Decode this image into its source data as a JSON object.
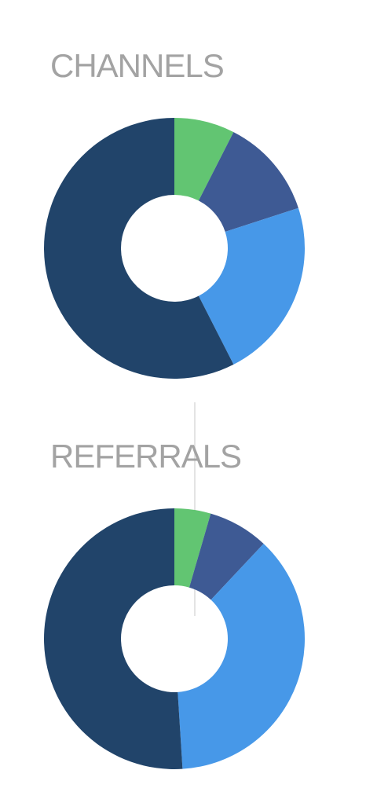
{
  "sections": {
    "channels": {
      "title": "CHANNELS"
    },
    "referrals": {
      "title": "REFERRALS"
    }
  },
  "colors": {
    "green": "#62c572",
    "indigo": "#3e5a94",
    "sky": "#4798e8",
    "navy": "#21446a"
  },
  "chart_data": [
    {
      "type": "pie",
      "donut": true,
      "title": "CHANNELS",
      "values": [
        7.5,
        12.5,
        22.5,
        57.5
      ],
      "colors": [
        "#62c572",
        "#3e5a94",
        "#4798e8",
        "#21446a"
      ]
    },
    {
      "type": "pie",
      "donut": true,
      "title": "REFERRALS",
      "values": [
        4.5,
        7.5,
        37.0,
        51.0
      ],
      "colors": [
        "#62c572",
        "#3e5a94",
        "#4798e8",
        "#21446a"
      ]
    }
  ]
}
